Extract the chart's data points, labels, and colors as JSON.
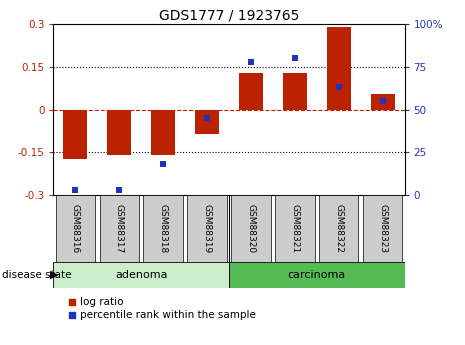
{
  "title": "GDS1777 / 1923765",
  "samples": [
    "GSM88316",
    "GSM88317",
    "GSM88318",
    "GSM88319",
    "GSM88320",
    "GSM88321",
    "GSM88322",
    "GSM88323"
  ],
  "log_ratio": [
    -0.175,
    -0.16,
    -0.16,
    -0.085,
    0.13,
    0.13,
    0.29,
    0.055
  ],
  "percentile_rank": [
    3,
    3,
    18,
    45,
    78,
    80,
    63,
    55
  ],
  "ylim": [
    -0.3,
    0.3
  ],
  "yticks_left": [
    -0.3,
    -0.15,
    0.0,
    0.15,
    0.3
  ],
  "yticks_right": [
    0,
    25,
    50,
    75,
    100
  ],
  "bar_color_red": "#bb2200",
  "bar_color_blue": "#2233bb",
  "bg_color": "#ffffff",
  "adenoma_color": "#cceecc",
  "carcinoma_color": "#55bb55",
  "sample_box_color": "#cccccc",
  "legend_red": "log ratio",
  "legend_blue": "percentile rank within the sample",
  "bar_width": 0.55,
  "n_adenoma": 4,
  "n_carcinoma": 4
}
